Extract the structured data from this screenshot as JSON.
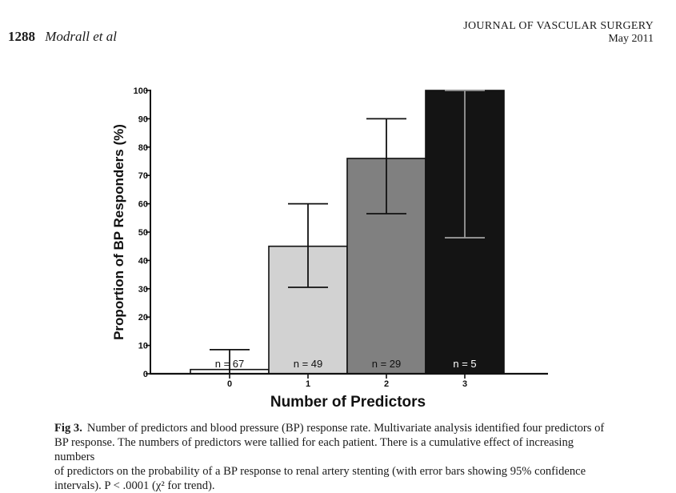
{
  "header": {
    "page_number": "1288",
    "authors": "Modrall et al",
    "journal": "JOURNAL OF VASCULAR SURGERY",
    "issue": "May 2011"
  },
  "chart_data": {
    "type": "bar",
    "xlabel": "Number of Predictors",
    "ylabel": "Proportion of BP Responders (%)",
    "ylim": [
      0,
      100
    ],
    "yticks": [
      0,
      10,
      20,
      30,
      40,
      50,
      60,
      70,
      80,
      90,
      100
    ],
    "categories": [
      "0",
      "1",
      "2",
      "3"
    ],
    "values": [
      1.5,
      45,
      76,
      100
    ],
    "error_low": [
      0,
      30.5,
      56.5,
      48
    ],
    "error_high": [
      8.5,
      60,
      90,
      100
    ],
    "counts": [
      "n = 67",
      "n = 49",
      "n = 29",
      "n = 5"
    ],
    "colors": [
      "#ffffff",
      "#d2d2d2",
      "#808080",
      "#141414"
    ],
    "count_label_colors": [
      "#111111",
      "#111111",
      "#111111",
      "#ffffff"
    ],
    "grid": false
  },
  "caption": {
    "label": "Fig 3.",
    "lines": [
      "Number of predictors and blood pressure (BP) response rate. Multivariate analysis identified four predictors of",
      "BP response. The numbers of predictors were tallied for each patient. There is a cumulative effect of increasing numbers",
      "of predictors on the probability of a BP response to renal artery stenting (with error bars showing 95% confidence",
      "intervals). P < .0001 (χ² for trend)."
    ]
  }
}
